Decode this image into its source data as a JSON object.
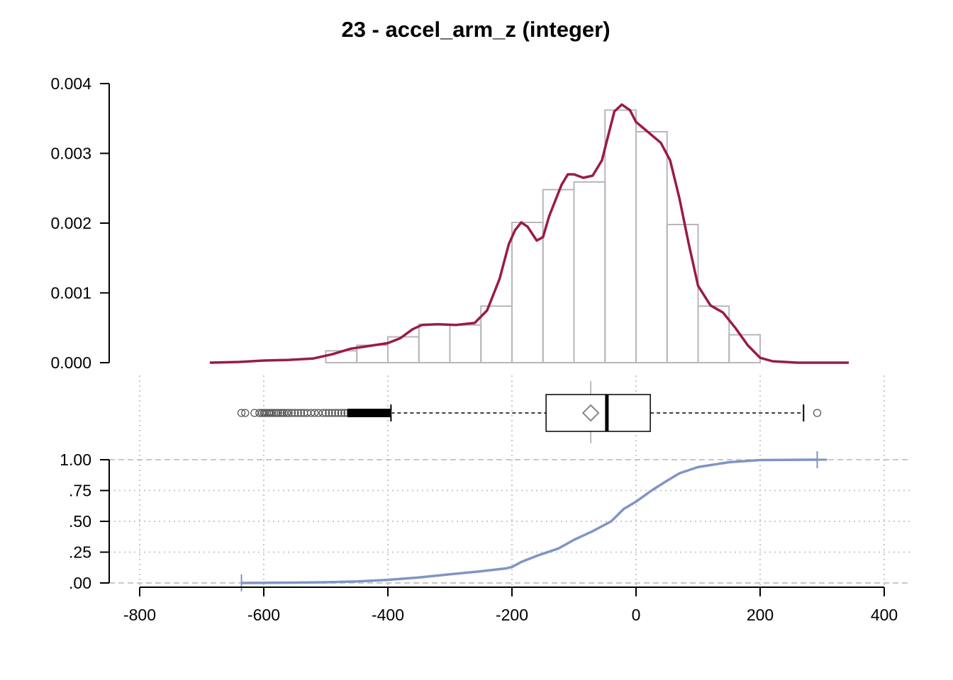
{
  "chart_data": {
    "title": "23 - accel_arm_z (integer)",
    "colors": {
      "density": "#9a1a4a",
      "hist_bar": "#b7b7b7",
      "ecdf": "#8095c3",
      "grid": "#c8c8c8",
      "box": "#000000",
      "mean_marker": "#888888"
    },
    "x_axis": {
      "range": [
        -850,
        440
      ],
      "ticks": [
        -800,
        -600,
        -400,
        -200,
        0,
        200,
        400
      ],
      "tick_labels": [
        "-800",
        "-600",
        "-400",
        "-200",
        "0",
        "200",
        "400"
      ]
    },
    "histogram": {
      "type": "bar",
      "ylim": [
        0,
        0.004
      ],
      "y_ticks": [
        0,
        0.001,
        0.002,
        0.003,
        0.004
      ],
      "y_tick_labels": [
        "0.000",
        "0.001",
        "0.002",
        "0.003",
        "0.004"
      ],
      "bins": [
        {
          "x0": -500,
          "x1": -450,
          "density": 0.00017
        },
        {
          "x0": -450,
          "x1": -400,
          "density": 0.00025
        },
        {
          "x0": -400,
          "x1": -350,
          "density": 0.00037
        },
        {
          "x0": -350,
          "x1": -300,
          "density": 0.00055
        },
        {
          "x0": -300,
          "x1": -250,
          "density": 0.00054
        },
        {
          "x0": -250,
          "x1": -200,
          "density": 0.00081
        },
        {
          "x0": -200,
          "x1": -150,
          "density": 0.00201
        },
        {
          "x0": -150,
          "x1": -100,
          "density": 0.00248
        },
        {
          "x0": -100,
          "x1": -50,
          "density": 0.00259
        },
        {
          "x0": -50,
          "x1": 0,
          "density": 0.00362
        },
        {
          "x0": 0,
          "x1": 50,
          "density": 0.00331
        },
        {
          "x0": 50,
          "x1": 100,
          "density": 0.00198
        },
        {
          "x0": 100,
          "x1": 150,
          "density": 0.00081
        },
        {
          "x0": 150,
          "x1": 200,
          "density": 0.0004
        }
      ]
    },
    "density": {
      "type": "line",
      "points": [
        [
          -687,
          0.0
        ],
        [
          -640,
          1e-05
        ],
        [
          -600,
          3e-05
        ],
        [
          -560,
          4e-05
        ],
        [
          -520,
          6e-05
        ],
        [
          -490,
          0.00012
        ],
        [
          -460,
          0.0002
        ],
        [
          -430,
          0.00024
        ],
        [
          -400,
          0.00028
        ],
        [
          -380,
          0.00035
        ],
        [
          -360,
          0.00048
        ],
        [
          -345,
          0.00054
        ],
        [
          -320,
          0.00055
        ],
        [
          -290,
          0.00054
        ],
        [
          -260,
          0.00057
        ],
        [
          -240,
          0.00075
        ],
        [
          -220,
          0.0012
        ],
        [
          -205,
          0.0017
        ],
        [
          -195,
          0.0019
        ],
        [
          -185,
          0.00201
        ],
        [
          -175,
          0.00195
        ],
        [
          -160,
          0.00175
        ],
        [
          -150,
          0.0018
        ],
        [
          -140,
          0.0021
        ],
        [
          -120,
          0.00255
        ],
        [
          -110,
          0.0027
        ],
        [
          -100,
          0.0027
        ],
        [
          -85,
          0.00265
        ],
        [
          -70,
          0.00268
        ],
        [
          -55,
          0.0029
        ],
        [
          -45,
          0.00325
        ],
        [
          -35,
          0.0036
        ],
        [
          -23,
          0.0037
        ],
        [
          -10,
          0.00362
        ],
        [
          0,
          0.00345
        ],
        [
          20,
          0.0033
        ],
        [
          40,
          0.00315
        ],
        [
          55,
          0.0029
        ],
        [
          70,
          0.00235
        ],
        [
          85,
          0.0017
        ],
        [
          100,
          0.0011
        ],
        [
          120,
          0.00082
        ],
        [
          140,
          0.00072
        ],
        [
          160,
          0.0005
        ],
        [
          180,
          0.00025
        ],
        [
          200,
          7e-05
        ],
        [
          220,
          2e-05
        ],
        [
          260,
          0.0
        ],
        [
          343,
          0.0
        ]
      ]
    },
    "boxplot": {
      "type": "box",
      "q1": -145,
      "median": -47,
      "q3": 23,
      "mean": -73,
      "whisker_low": -395,
      "whisker_high": 270,
      "outliers_low": [
        -636,
        -630,
        -615,
        -607,
        -603,
        -600,
        -598,
        -595,
        -592,
        -590,
        -587,
        -584,
        -580,
        -577,
        -573,
        -570,
        -567,
        -563,
        -560,
        -555,
        -550,
        -545,
        -540,
        -535,
        -530,
        -524,
        -518,
        -512,
        -505,
        -500,
        -495,
        -490,
        -485,
        -480,
        -475,
        -470,
        -465,
        -460,
        -455,
        -450,
        -445,
        -440,
        -435,
        -430,
        -425,
        -420,
        -415,
        -410,
        -405,
        -400
      ],
      "outliers_high": [
        292
      ]
    },
    "ecdf": {
      "type": "line",
      "ylim": [
        0,
        1
      ],
      "y_ticks": [
        0,
        0.25,
        0.5,
        0.75,
        1.0
      ],
      "y_tick_labels": [
        ".00",
        ".25",
        ".50",
        ".75",
        "1.00"
      ],
      "min": -636,
      "max": 292,
      "points": [
        [
          -636,
          0.0
        ],
        [
          -550,
          0.003
        ],
        [
          -500,
          0.006
        ],
        [
          -450,
          0.012
        ],
        [
          -400,
          0.025
        ],
        [
          -350,
          0.045
        ],
        [
          -300,
          0.07
        ],
        [
          -250,
          0.095
        ],
        [
          -210,
          0.118
        ],
        [
          -200,
          0.13
        ],
        [
          -185,
          0.17
        ],
        [
          -160,
          0.22
        ],
        [
          -125,
          0.28
        ],
        [
          -100,
          0.35
        ],
        [
          -70,
          0.42
        ],
        [
          -40,
          0.5
        ],
        [
          -20,
          0.6
        ],
        [
          0,
          0.66
        ],
        [
          25,
          0.75
        ],
        [
          50,
          0.83
        ],
        [
          70,
          0.89
        ],
        [
          100,
          0.94
        ],
        [
          150,
          0.98
        ],
        [
          200,
          0.997
        ],
        [
          292,
          1.0
        ]
      ]
    }
  }
}
